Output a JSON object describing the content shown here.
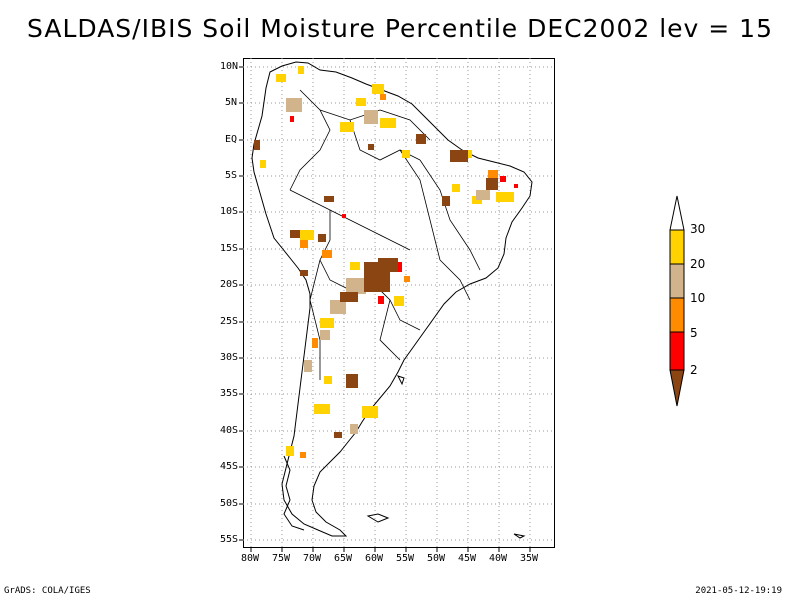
{
  "title": "SALDAS/IBIS Soil Moisture Percentile DEC2002 lev = 15",
  "lat_labels": [
    "10N",
    "5N",
    "EQ",
    "5S",
    "10S",
    "15S",
    "20S",
    "25S",
    "30S",
    "35S",
    "40S",
    "45S",
    "50S",
    "55S"
  ],
  "lon_labels": [
    "80W",
    "75W",
    "70W",
    "65W",
    "60W",
    "55W",
    "50W",
    "45W",
    "40W",
    "35W"
  ],
  "legend": {
    "labels": [
      "30",
      "20",
      "10",
      "5",
      "2"
    ],
    "colors": [
      "#ffffff",
      "#ffd200",
      "#d2b48c",
      "#ff8c00",
      "#ff0000",
      "#8b4513"
    ]
  },
  "footer_left": "GrADS: COLA/IGES",
  "footer_right": "2021-05-12-19:19",
  "map_colors": {
    "land_outline": "#000000",
    "grid": "#9a9a9a"
  }
}
